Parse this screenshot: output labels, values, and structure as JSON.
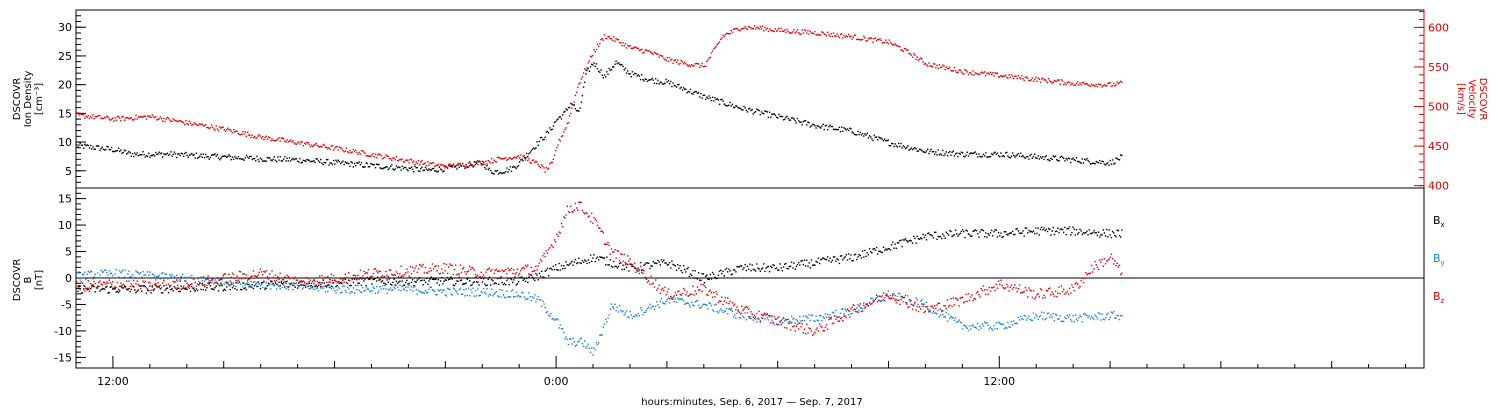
{
  "chart_data": [
    {
      "type": "scatter",
      "panel": "top",
      "ylabel_left": [
        "DSCOVR",
        "Ion Density",
        "[cm⁻³]"
      ],
      "ylabel_right": [
        "DSCOVR",
        "Velocity",
        "[km/s]"
      ],
      "left_axis": {
        "ylim": [
          2,
          33
        ],
        "ticks": [
          5,
          10,
          15,
          20,
          25,
          30
        ],
        "color": "#000000"
      },
      "right_axis": {
        "ylim": [
          397,
          622
        ],
        "ticks": [
          400,
          450,
          500,
          550,
          600
        ],
        "color": "#e00000"
      },
      "xlim_hours": [
        -13,
        23.5
      ],
      "series": [
        {
          "color": "#000000",
          "axis": "left",
          "jitter": 0.5,
          "points": [
            [
              -13,
              9.5
            ],
            [
              -12,
              8.8
            ],
            [
              -11.5,
              8
            ],
            [
              -10.5,
              8
            ],
            [
              -10,
              7.8
            ],
            [
              -9,
              7.5
            ],
            [
              -8,
              7.2
            ],
            [
              -7,
              7
            ],
            [
              -6,
              6.5
            ],
            [
              -5,
              6
            ],
            [
              -4,
              5.5
            ],
            [
              -3.5,
              5.2
            ],
            [
              -3,
              5.5
            ],
            [
              -2.5,
              6
            ],
            [
              -2,
              6.5
            ],
            [
              -1.8,
              5
            ],
            [
              -1.5,
              5
            ],
            [
              -1.2,
              5.5
            ],
            [
              -1,
              6.5
            ],
            [
              -0.8,
              8
            ],
            [
              -0.5,
              10
            ],
            [
              -0.2,
              12
            ],
            [
              0,
              14
            ],
            [
              0.2,
              15
            ],
            [
              0.4,
              17
            ],
            [
              0.6,
              15
            ],
            [
              0.8,
              22
            ],
            [
              1,
              24
            ],
            [
              1.3,
              21.5
            ],
            [
              1.6,
              24
            ],
            [
              2,
              22
            ],
            [
              2.5,
              21
            ],
            [
              3,
              20.5
            ],
            [
              4,
              18
            ],
            [
              5,
              16
            ],
            [
              6,
              14.5
            ],
            [
              7,
              13
            ],
            [
              8,
              12
            ],
            [
              9,
              10
            ],
            [
              10,
              8.5
            ],
            [
              11,
              8
            ],
            [
              12,
              8
            ],
            [
              13,
              7.5
            ],
            [
              14,
              7
            ],
            [
              15,
              6.5
            ],
            [
              15.3,
              7.5
            ]
          ]
        },
        {
          "color": "#e00000",
          "axis": "right",
          "jitter": 3,
          "points": [
            [
              -13,
              490
            ],
            [
              -12,
              485
            ],
            [
              -11,
              488
            ],
            [
              -10,
              480
            ],
            [
              -9,
              472
            ],
            [
              -8,
              462
            ],
            [
              -7,
              455
            ],
            [
              -6,
              448
            ],
            [
              -5,
              440
            ],
            [
              -4,
              432
            ],
            [
              -3,
              425
            ],
            [
              -2,
              430
            ],
            [
              -1.5,
              435
            ],
            [
              -1,
              438
            ],
            [
              -0.5,
              428
            ],
            [
              -0.3,
              420
            ],
            [
              -0.1,
              430
            ],
            [
              0,
              450
            ],
            [
              0.3,
              480
            ],
            [
              0.6,
              530
            ],
            [
              1,
              570
            ],
            [
              1.3,
              590
            ],
            [
              1.6,
              585
            ],
            [
              2,
              575
            ],
            [
              2.5,
              570
            ],
            [
              3,
              560
            ],
            [
              3.5,
              555
            ],
            [
              4,
              552
            ],
            [
              4.5,
              590
            ],
            [
              5,
              601
            ],
            [
              5.5,
              600
            ],
            [
              6,
              597
            ],
            [
              7,
              594
            ],
            [
              8,
              589
            ],
            [
              9,
              582
            ],
            [
              9.5,
              570
            ],
            [
              10,
              555
            ],
            [
              11,
              545
            ],
            [
              12,
              540
            ],
            [
              13,
              535
            ],
            [
              14,
              530
            ],
            [
              15,
              528
            ],
            [
              15.3,
              530
            ]
          ]
        }
      ]
    },
    {
      "type": "scatter",
      "panel": "bottom",
      "ylabel_left": [
        "DSCOVR",
        "B",
        "[nT]"
      ],
      "left_axis": {
        "ylim": [
          -17,
          17
        ],
        "ticks": [
          -15,
          -10,
          -5,
          0,
          5,
          10,
          15
        ],
        "color": "#000000"
      },
      "zero_line": true,
      "xlim_hours": [
        -13,
        23.5
      ],
      "x_ticks_labeled": [
        {
          "hour": -12,
          "label": "12:00"
        },
        {
          "hour": 0,
          "label": "0:00"
        },
        {
          "hour": 12,
          "label": "12:00"
        }
      ],
      "xlabel": "hours:minutes, Sep.  6, 2017 — Sep.  7, 2017",
      "legend": [
        {
          "base": "B",
          "sub": "x",
          "color": "#000000"
        },
        {
          "base": "B",
          "sub": "y",
          "color": "#1a7fdc"
        },
        {
          "base": "B",
          "sub": "z",
          "color": "#e00000"
        }
      ],
      "series": [
        {
          "name": "Bx",
          "color": "#000000",
          "jitter": 0.8,
          "points": [
            [
              -13,
              -2
            ],
            [
              -11,
              -2
            ],
            [
              -9,
              -1.5
            ],
            [
              -7,
              -1
            ],
            [
              -5,
              -0.5
            ],
            [
              -3,
              -0.5
            ],
            [
              -1,
              -0.5
            ],
            [
              -0.5,
              0.5
            ],
            [
              0,
              2
            ],
            [
              0.5,
              3
            ],
            [
              1,
              4
            ],
            [
              1.5,
              3
            ],
            [
              2,
              2
            ],
            [
              3,
              3
            ],
            [
              4,
              0
            ],
            [
              5,
              2
            ],
            [
              6,
              2
            ],
            [
              7,
              3
            ],
            [
              8,
              4
            ],
            [
              8.5,
              5
            ],
            [
              9,
              6
            ],
            [
              10,
              8
            ],
            [
              11,
              8.5
            ],
            [
              12,
              8.5
            ],
            [
              13,
              9
            ],
            [
              14,
              9
            ],
            [
              15,
              8.5
            ],
            [
              15.3,
              8.5
            ]
          ]
        },
        {
          "name": "By",
          "color": "#1a7fdc",
          "jitter": 0.8,
          "points": [
            [
              -13,
              0.5
            ],
            [
              -12,
              1
            ],
            [
              -11,
              0.5
            ],
            [
              -10,
              0
            ],
            [
              -9,
              -0.5
            ],
            [
              -8,
              -1
            ],
            [
              -7,
              -1.5
            ],
            [
              -6,
              -2
            ],
            [
              -5,
              -2
            ],
            [
              -4,
              -2
            ],
            [
              -3,
              -2.5
            ],
            [
              -2,
              -2.5
            ],
            [
              -1,
              -3
            ],
            [
              -0.5,
              -4
            ],
            [
              0,
              -8
            ],
            [
              0.3,
              -12
            ],
            [
              0.7,
              -12
            ],
            [
              1,
              -14
            ],
            [
              1.5,
              -5
            ],
            [
              2,
              -7
            ],
            [
              3,
              -4
            ],
            [
              4,
              -5
            ],
            [
              5,
              -7
            ],
            [
              6,
              -8
            ],
            [
              7,
              -7.5
            ],
            [
              8,
              -6
            ],
            [
              9,
              -3
            ],
            [
              10,
              -5
            ],
            [
              11,
              -9
            ],
            [
              12,
              -9
            ],
            [
              13,
              -7
            ],
            [
              14,
              -7.5
            ],
            [
              15,
              -7
            ],
            [
              15.3,
              -7
            ]
          ]
        },
        {
          "name": "Bz",
          "color": "#e00000",
          "jitter": 1,
          "points": [
            [
              -13,
              -1.5
            ],
            [
              -12,
              -1
            ],
            [
              -11,
              -1.5
            ],
            [
              -10,
              -1
            ],
            [
              -9,
              0
            ],
            [
              -8,
              1
            ],
            [
              -7,
              -0.5
            ],
            [
              -6,
              0
            ],
            [
              -5,
              1
            ],
            [
              -4,
              1.5
            ],
            [
              -3,
              2
            ],
            [
              -2,
              1
            ],
            [
              -1,
              1.5
            ],
            [
              -0.5,
              2
            ],
            [
              0,
              8
            ],
            [
              0.3,
              13
            ],
            [
              0.6,
              14
            ],
            [
              1,
              11
            ],
            [
              1.5,
              5
            ],
            [
              2,
              3
            ],
            [
              3,
              -3
            ],
            [
              4,
              -2
            ],
            [
              5,
              -6
            ],
            [
              6,
              -8
            ],
            [
              7,
              -10
            ],
            [
              8,
              -6
            ],
            [
              9,
              -3
            ],
            [
              10,
              -6
            ],
            [
              11,
              -4
            ],
            [
              12,
              -1
            ],
            [
              13,
              -3
            ],
            [
              14,
              -2
            ],
            [
              14.5,
              2
            ],
            [
              15,
              4
            ],
            [
              15.3,
              1
            ]
          ]
        }
      ]
    }
  ]
}
